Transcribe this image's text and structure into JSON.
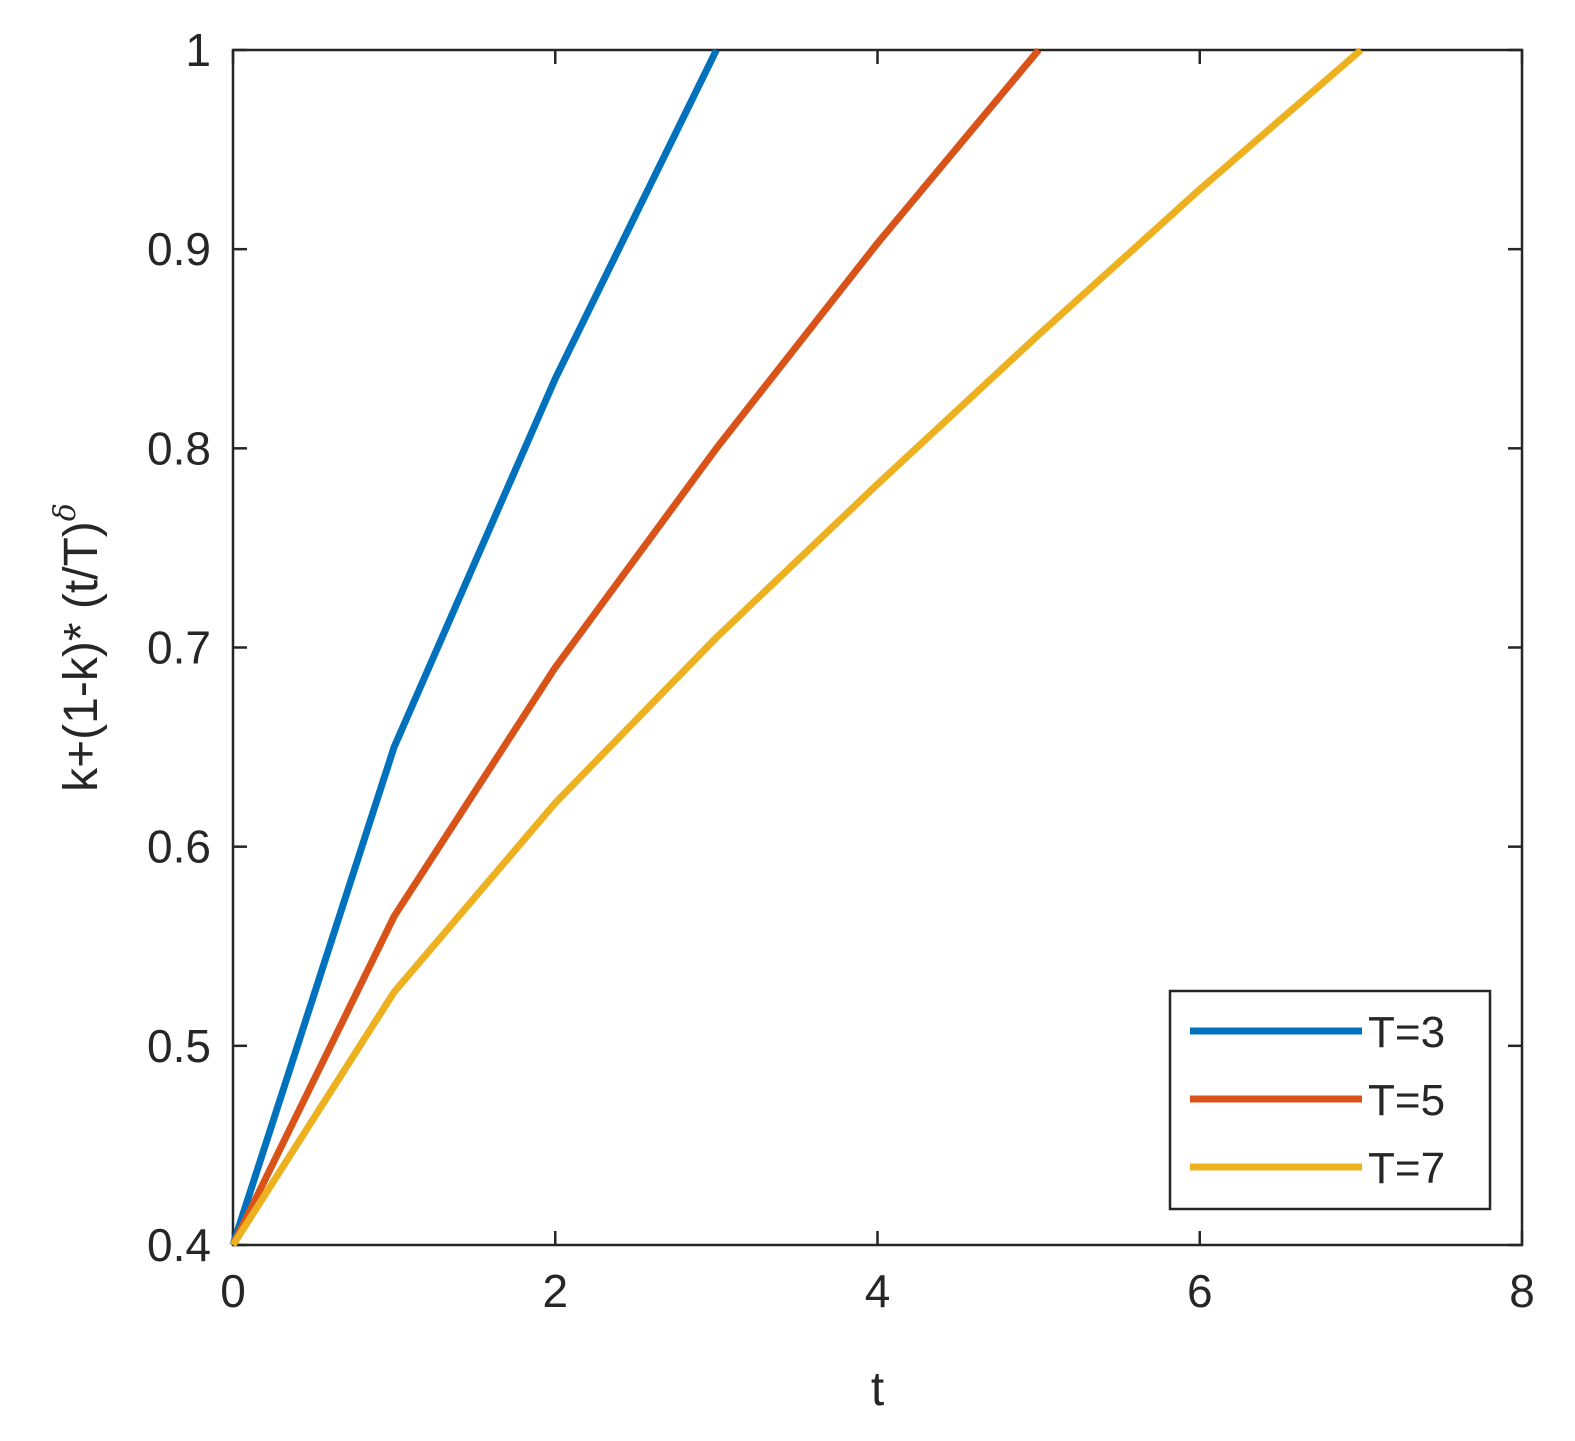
{
  "chart_data": {
    "type": "line",
    "xlabel": "t",
    "ylabel": "k+(1-k)* (t/T)",
    "ylabel_superscript": "δ",
    "xlim": [
      0,
      8
    ],
    "ylim": [
      0.4,
      1
    ],
    "xticks": [
      0,
      2,
      4,
      6,
      8
    ],
    "yticks": [
      0.4,
      0.5,
      0.6,
      0.7,
      0.8,
      0.9,
      1
    ],
    "ytick_labels": [
      "0.4",
      "0.5",
      "0.6",
      "0.7",
      "0.8",
      "0.9",
      "1"
    ],
    "grid": false,
    "legend_position": "bottom-right",
    "series": [
      {
        "name": "T=3",
        "color": "#0072BD",
        "x": [
          0,
          1,
          2,
          3
        ],
        "y": [
          0.4,
          0.65,
          0.835,
          1.0
        ]
      },
      {
        "name": "T=5",
        "color": "#D95319",
        "x": [
          0,
          1,
          2,
          3,
          4,
          5
        ],
        "y": [
          0.4,
          0.565,
          0.69,
          0.8,
          0.903,
          1.0
        ]
      },
      {
        "name": "T=7",
        "color": "#EDB120",
        "x": [
          0,
          1,
          2,
          3,
          4,
          5,
          6,
          7
        ],
        "y": [
          0.4,
          0.527,
          0.622,
          0.705,
          0.782,
          0.857,
          0.93,
          1.0
        ]
      }
    ]
  }
}
